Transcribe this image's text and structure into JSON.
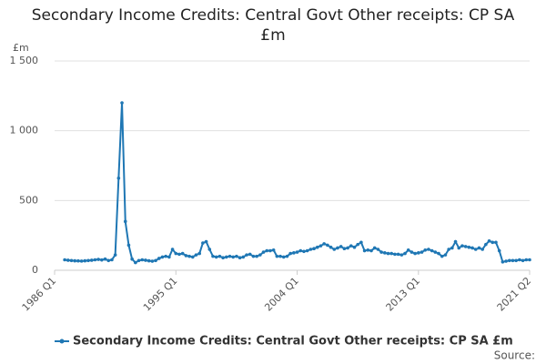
{
  "chart_data": {
    "type": "line",
    "title": "Secondary Income Credits: Central Govt Other receipts: CP SA £m",
    "y_label": "£m",
    "source": "Source:",
    "x": [
      "1986 Q1",
      "1986 Q2",
      "1986 Q3",
      "1986 Q4",
      "1987 Q1",
      "1987 Q2",
      "1987 Q3",
      "1987 Q4",
      "1988 Q1",
      "1988 Q2",
      "1988 Q3",
      "1988 Q4",
      "1989 Q1",
      "1989 Q2",
      "1989 Q3",
      "1989 Q4",
      "1990 Q1",
      "1990 Q2",
      "1990 Q3",
      "1990 Q4",
      "1991 Q1",
      "1991 Q2",
      "1991 Q3",
      "1991 Q4",
      "1992 Q1",
      "1992 Q2",
      "1992 Q3",
      "1992 Q4",
      "1993 Q1",
      "1993 Q2",
      "1993 Q3",
      "1993 Q4",
      "1994 Q1",
      "1994 Q2",
      "1994 Q3",
      "1994 Q4",
      "1995 Q1",
      "1995 Q2",
      "1995 Q3",
      "1995 Q4",
      "1996 Q1",
      "1996 Q2",
      "1996 Q3",
      "1996 Q4",
      "1997 Q1",
      "1997 Q2",
      "1997 Q3",
      "1997 Q4",
      "1998 Q1",
      "1998 Q2",
      "1998 Q3",
      "1998 Q4",
      "1999 Q1",
      "1999 Q2",
      "1999 Q3",
      "1999 Q4",
      "2000 Q1",
      "2000 Q2",
      "2000 Q3",
      "2000 Q4",
      "2001 Q1",
      "2001 Q2",
      "2001 Q3",
      "2001 Q4",
      "2002 Q1",
      "2002 Q2",
      "2002 Q3",
      "2002 Q4",
      "2003 Q1",
      "2003 Q2",
      "2003 Q3",
      "2003 Q4",
      "2004 Q1",
      "2004 Q2",
      "2004 Q3",
      "2004 Q4",
      "2005 Q1",
      "2005 Q2",
      "2005 Q3",
      "2005 Q4",
      "2006 Q1",
      "2006 Q2",
      "2006 Q3",
      "2006 Q4",
      "2007 Q1",
      "2007 Q2",
      "2007 Q3",
      "2007 Q4",
      "2008 Q1",
      "2008 Q2",
      "2008 Q3",
      "2008 Q4",
      "2009 Q1",
      "2009 Q2",
      "2009 Q3",
      "2009 Q4",
      "2010 Q1",
      "2010 Q2",
      "2010 Q3",
      "2010 Q4",
      "2011 Q1",
      "2011 Q2",
      "2011 Q3",
      "2011 Q4",
      "2012 Q1",
      "2012 Q2",
      "2012 Q3",
      "2012 Q4",
      "2013 Q1",
      "2013 Q2",
      "2013 Q3",
      "2013 Q4",
      "2014 Q1",
      "2014 Q2",
      "2014 Q3",
      "2014 Q4",
      "2015 Q1",
      "2015 Q2",
      "2015 Q3",
      "2015 Q4",
      "2016 Q1",
      "2016 Q2",
      "2016 Q3",
      "2016 Q4",
      "2017 Q1",
      "2017 Q2",
      "2017 Q3",
      "2017 Q4",
      "2018 Q1",
      "2018 Q2",
      "2018 Q3",
      "2018 Q4",
      "2019 Q1",
      "2019 Q2",
      "2019 Q3",
      "2019 Q4",
      "2020 Q1",
      "2020 Q2",
      "2020 Q3",
      "2020 Q4",
      "2021 Q1",
      "2021 Q2"
    ],
    "series": [
      {
        "name": "Secondary Income Credits: Central Govt Other receipts: CP SA £m",
        "color": "#1f77b4",
        "values": [
          null,
          null,
          null,
          75,
          72,
          70,
          68,
          67,
          66,
          68,
          70,
          72,
          75,
          78,
          74,
          80,
          70,
          75,
          110,
          660,
          1200,
          350,
          180,
          80,
          55,
          70,
          75,
          72,
          68,
          65,
          70,
          85,
          95,
          100,
          95,
          150,
          120,
          115,
          120,
          105,
          100,
          95,
          110,
          120,
          195,
          205,
          150,
          100,
          95,
          100,
          90,
          95,
          100,
          95,
          100,
          90,
          95,
          110,
          115,
          100,
          100,
          110,
          130,
          140,
          140,
          145,
          100,
          100,
          95,
          100,
          120,
          125,
          130,
          140,
          135,
          140,
          150,
          155,
          165,
          175,
          190,
          180,
          165,
          150,
          160,
          170,
          155,
          160,
          175,
          165,
          185,
          200,
          140,
          145,
          140,
          160,
          150,
          130,
          125,
          120,
          120,
          115,
          115,
          110,
          120,
          145,
          130,
          120,
          125,
          130,
          145,
          150,
          140,
          130,
          120,
          100,
          110,
          150,
          160,
          205,
          160,
          175,
          170,
          165,
          160,
          150,
          160,
          150,
          185,
          210,
          200,
          200,
          140,
          60,
          65,
          70,
          70,
          70,
          75,
          70,
          75,
          75
        ]
      }
    ],
    "xticks": [
      "1986 Q1",
      "1995 Q1",
      "2004 Q1",
      "2013 Q1",
      "2021 Q2"
    ],
    "ylim": [
      0,
      1500
    ],
    "yticks": [
      0,
      500,
      {
        "value": 1000,
        "label": "1 000"
      },
      {
        "value": 1500,
        "label": "1 500"
      }
    ],
    "grid": true
  }
}
